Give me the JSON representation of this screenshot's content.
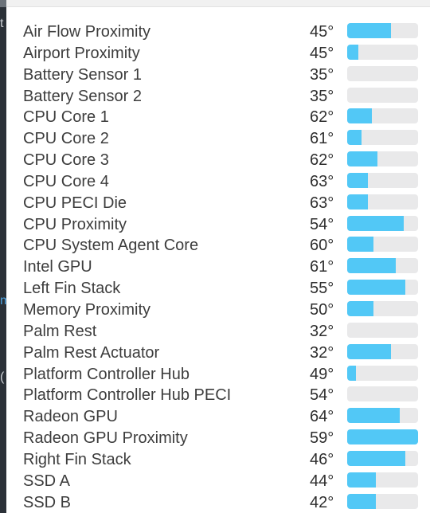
{
  "sensors": [
    {
      "name": "Air Flow Proximity",
      "temp": "45°",
      "level": 0.62
    },
    {
      "name": "Airport Proximity",
      "temp": "45°",
      "level": 0.16
    },
    {
      "name": "Battery Sensor 1",
      "temp": "35°",
      "level": 0
    },
    {
      "name": "Battery Sensor 2",
      "temp": "35°",
      "level": 0
    },
    {
      "name": "CPU Core 1",
      "temp": "62°",
      "level": 0.35
    },
    {
      "name": "CPU Core 2",
      "temp": "61°",
      "level": 0.2
    },
    {
      "name": "CPU Core 3",
      "temp": "62°",
      "level": 0.43
    },
    {
      "name": "CPU Core 4",
      "temp": "63°",
      "level": 0.29
    },
    {
      "name": "CPU PECI Die",
      "temp": "63°",
      "level": 0.29
    },
    {
      "name": "CPU Proximity",
      "temp": "54°",
      "level": 0.8
    },
    {
      "name": "CPU System Agent Core",
      "temp": "60°",
      "level": 0.37
    },
    {
      "name": "Intel GPU",
      "temp": "61°",
      "level": 0.68
    },
    {
      "name": "Left Fin Stack",
      "temp": "55°",
      "level": 0.82
    },
    {
      "name": "Memory Proximity",
      "temp": "50°",
      "level": 0.37
    },
    {
      "name": "Palm Rest",
      "temp": "32°",
      "level": 0
    },
    {
      "name": "Palm Rest Actuator",
      "temp": "32°",
      "level": 0.62
    },
    {
      "name": "Platform Controller Hub",
      "temp": "49°",
      "level": 0.12
    },
    {
      "name": "Platform Controller Hub PECI",
      "temp": "54°",
      "level": 0
    },
    {
      "name": "Radeon GPU",
      "temp": "64°",
      "level": 0.74
    },
    {
      "name": "Radeon GPU Proximity",
      "temp": "59°",
      "level": 1.0
    },
    {
      "name": "Right Fin Stack",
      "temp": "46°",
      "level": 0.82
    },
    {
      "name": "SSD A",
      "temp": "44°",
      "level": 0.41
    },
    {
      "name": "SSD B",
      "temp": "42°",
      "level": 0.41
    }
  ],
  "colors": {
    "bar_fill": "#52c8f6",
    "bar_track": "#e9e9ea"
  },
  "edge_glyphs": {
    "top": "t",
    "middle": "m",
    "lower": "("
  }
}
